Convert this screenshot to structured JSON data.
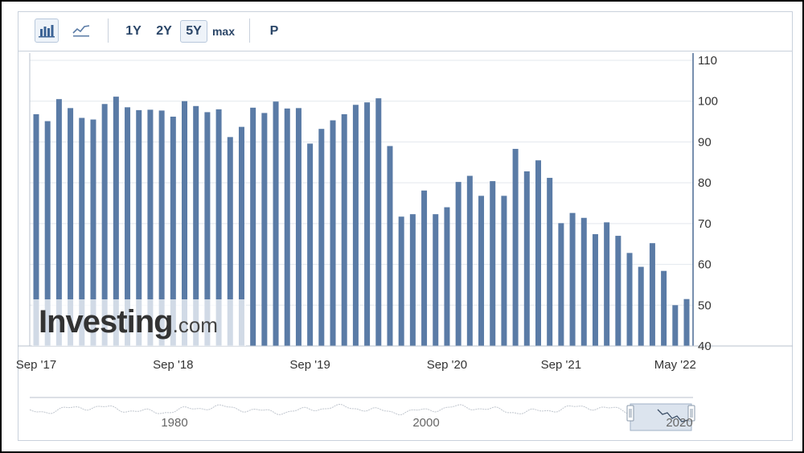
{
  "toolbar": {
    "chart_type_buttons": [
      {
        "name": "bar-chart-icon",
        "active": true
      },
      {
        "name": "line-chart-icon",
        "active": false
      }
    ],
    "ranges": [
      "1Y",
      "2Y",
      "5Y",
      "max"
    ],
    "active_range": "5Y",
    "extra_button": "P"
  },
  "watermark": {
    "brand": "Investing",
    "suffix": ".com"
  },
  "colors": {
    "bar": "#5a7ba6",
    "axis": "#4a6a93",
    "grid": "#e3e8ee",
    "navigator_fill": "#dce4ee"
  },
  "chart_data": {
    "type": "bar",
    "title": "",
    "xlabel": "",
    "ylabel": "",
    "ylim": [
      40,
      110
    ],
    "y_ticks": [
      40,
      50,
      60,
      70,
      80,
      90,
      100,
      110
    ],
    "x_tick_labels": [
      "Sep '17",
      "Sep '18",
      "Sep '19",
      "Sep '20",
      "Sep '21",
      "May '22"
    ],
    "x_tick_bar_index": [
      0,
      12,
      24,
      36,
      46,
      56
    ],
    "legend": "none",
    "grid": true,
    "values": [
      96.8,
      95.1,
      100.5,
      98.3,
      95.9,
      95.5,
      99.3,
      101.1,
      98.5,
      97.8,
      97.9,
      97.7,
      96.2,
      100.0,
      98.8,
      97.3,
      98.0,
      91.2,
      93.7,
      98.4,
      97.1,
      99.9,
      98.2,
      98.3,
      89.6,
      93.2,
      95.3,
      96.8,
      99.1,
      99.7,
      100.7,
      89.0,
      71.7,
      72.3,
      78.1,
      72.3,
      74.0,
      80.2,
      81.7,
      76.8,
      80.4,
      76.8,
      88.3,
      82.8,
      85.5,
      81.2,
      70.1,
      72.6,
      71.4,
      67.4,
      70.3,
      67.0,
      62.8,
      59.4,
      65.2,
      58.4,
      50.0,
      51.5
    ],
    "navigator": {
      "x_labels": [
        "1980",
        "2000",
        "2020"
      ]
    }
  }
}
